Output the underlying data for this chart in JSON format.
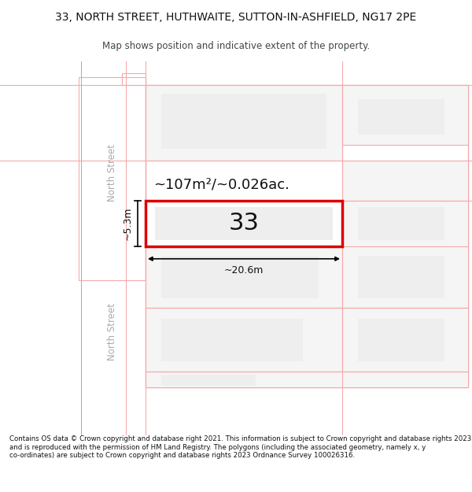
{
  "title_line1": "33, NORTH STREET, HUTHWAITE, SUTTON-IN-ASHFIELD, NG17 2PE",
  "title_line2": "Map shows position and indicative extent of the property.",
  "footer_text": "Contains OS data © Crown copyright and database right 2021. This information is subject to Crown copyright and database rights 2023 and is reproduced with the permission of HM Land Registry. The polygons (including the associated geometry, namely x, y co-ordinates) are subject to Crown copyright and database rights 2023 Ordnance Survey 100026316.",
  "bg_color": "#ffffff",
  "highlight_border": "#dd0000",
  "road_line_color": "#f5aaaa",
  "street_label_color": "#aaaaaa",
  "area_label": "~107m²/~0.026ac.",
  "number_label": "33",
  "dim_width": "~20.6m",
  "dim_height": "~5.3m",
  "plot_fill": "#eeeeee",
  "outer_fill": "#f5f5f5",
  "highlight_fill": "#ffffff"
}
